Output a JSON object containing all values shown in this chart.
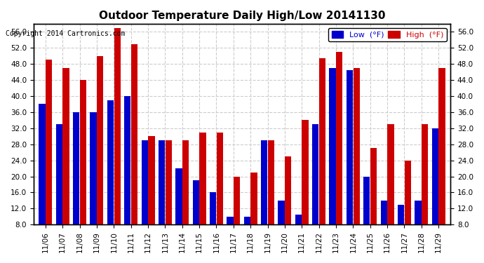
{
  "title": "Outdoor Temperature Daily High/Low 20141130",
  "copyright": "Copyright 2014 Cartronics.com",
  "legend_low": "Low  (°F)",
  "legend_high": "High  (°F)",
  "background_color": "#ffffff",
  "plot_bg_color": "#ffffff",
  "grid_color": "#cccccc",
  "low_color": "#0000cc",
  "high_color": "#cc0000",
  "ylim": [
    8.0,
    58.0
  ],
  "yticks": [
    8.0,
    12.0,
    16.0,
    20.0,
    24.0,
    28.0,
    32.0,
    36.0,
    40.0,
    44.0,
    48.0,
    52.0,
    56.0
  ],
  "dates": [
    "11/06",
    "11/07",
    "11/08",
    "11/09",
    "11/10",
    "11/11",
    "11/12",
    "11/13",
    "11/14",
    "11/15",
    "11/16",
    "11/17",
    "11/18",
    "11/19",
    "11/20",
    "11/21",
    "11/22",
    "11/23",
    "11/24",
    "11/25",
    "11/26",
    "11/27",
    "11/28",
    "11/29"
  ],
  "highs": [
    49.0,
    47.0,
    44.0,
    50.0,
    57.0,
    53.0,
    30.0,
    29.0,
    29.0,
    31.0,
    31.0,
    20.0,
    21.0,
    29.0,
    25.0,
    34.0,
    49.5,
    51.0,
    47.0,
    27.0,
    33.0,
    24.0,
    33.0,
    47.0
  ],
  "lows": [
    38.0,
    33.0,
    36.0,
    36.0,
    39.0,
    40.0,
    29.0,
    29.0,
    22.0,
    19.0,
    16.0,
    10.0,
    10.0,
    29.0,
    14.0,
    10.5,
    33.0,
    47.0,
    46.5,
    20.0,
    14.0,
    13.0,
    14.0,
    32.0
  ]
}
